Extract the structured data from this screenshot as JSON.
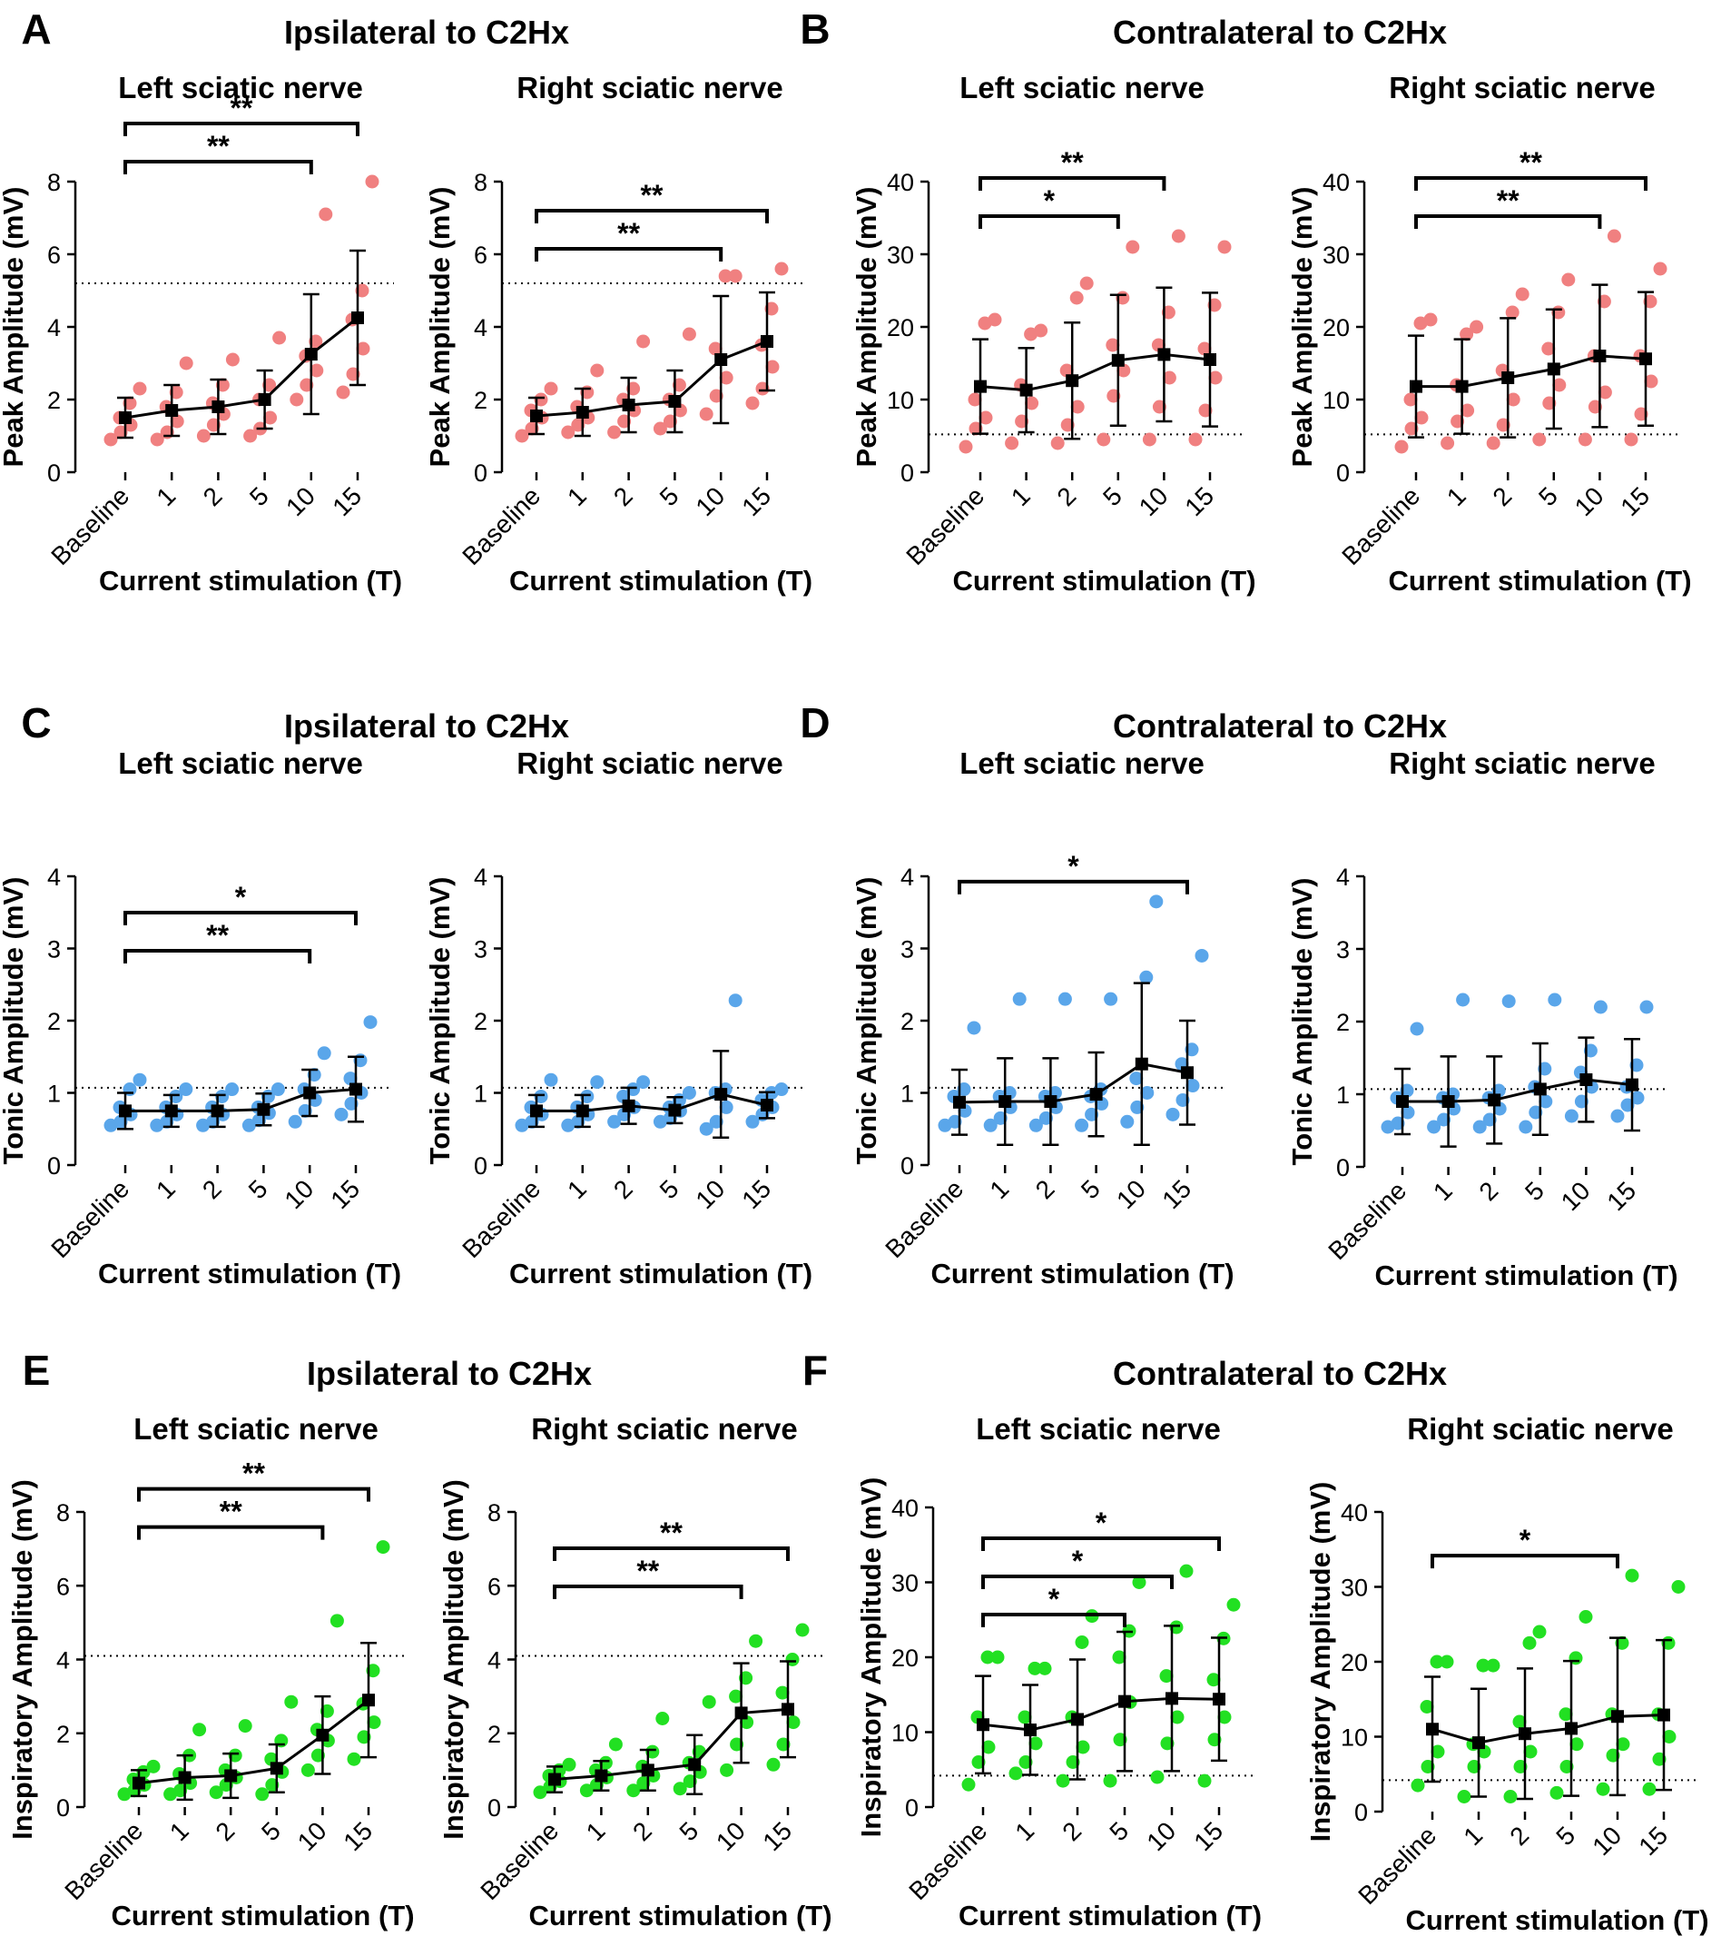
{
  "figure": {
    "panel_letters": [
      "A",
      "B",
      "C",
      "D",
      "E",
      "F"
    ],
    "group_titles": [
      "Ipsilateral to C2Hx",
      "Contralateral to C2Hx",
      "Ipsilateral to C2Hx",
      "Contralateral to C2Hx",
      "Ipsilateral to C2Hx",
      "Contralateral to C2Hx"
    ]
  },
  "colors": {
    "peak_points": "#f08080",
    "tonic_points": "#5aa6ea",
    "inspiratory_points": "#22e022",
    "mean_marker": "#000000"
  },
  "chart_data": [
    {
      "type": "scatter",
      "panel": "A",
      "title": "Left sciatic nerve",
      "xlabel": "Current stimulation (T)",
      "ylabel": "Peak Amplitude (mV)",
      "categories": [
        "Baseline",
        "1",
        "2",
        "5",
        "10",
        "15"
      ],
      "ylim": [
        0,
        8
      ],
      "yticks": [
        0,
        2,
        4,
        6,
        8
      ],
      "reference_line": 5.2,
      "point_color": "peak_points",
      "mean": [
        1.5,
        1.7,
        1.8,
        2.0,
        3.25,
        4.25
      ],
      "sd": [
        0.55,
        0.7,
        0.75,
        0.8,
        1.65,
        1.85
      ],
      "points": [
        [
          0.9,
          1.1,
          1.3,
          1.5,
          1.9,
          2.3
        ],
        [
          0.9,
          1.1,
          1.4,
          1.8,
          2.2,
          3.0
        ],
        [
          1.0,
          1.3,
          1.6,
          1.9,
          2.4,
          3.1
        ],
        [
          1.0,
          1.2,
          1.5,
          2.0,
          2.4,
          3.7
        ],
        [
          2.0,
          2.4,
          2.8,
          3.2,
          3.6,
          7.1
        ],
        [
          2.2,
          2.7,
          3.4,
          4.2,
          5.0,
          8.0
        ]
      ],
      "significance": [
        {
          "from": "Baseline",
          "to": "10",
          "label": "**"
        },
        {
          "from": "Baseline",
          "to": "15",
          "label": "**"
        }
      ]
    },
    {
      "type": "scatter",
      "panel": "A",
      "title": "Right sciatic nerve",
      "xlabel": "Current stimulation (T)",
      "ylabel": "Peak Amplitude (mV)",
      "categories": [
        "Baseline",
        "1",
        "2",
        "5",
        "10",
        "15"
      ],
      "ylim": [
        0,
        8
      ],
      "yticks": [
        0,
        2,
        4,
        6,
        8
      ],
      "reference_line": 5.2,
      "point_color": "peak_points",
      "mean": [
        1.55,
        1.65,
        1.85,
        1.95,
        3.1,
        3.6
      ],
      "sd": [
        0.5,
        0.65,
        0.75,
        0.85,
        1.75,
        1.35
      ],
      "points": [
        [
          1.0,
          1.2,
          1.5,
          1.7,
          2.0,
          2.3
        ],
        [
          1.1,
          1.3,
          1.5,
          1.8,
          2.2,
          2.8
        ],
        [
          1.1,
          1.4,
          1.7,
          2.0,
          2.3,
          3.6
        ],
        [
          1.2,
          1.4,
          1.7,
          2.0,
          2.4,
          3.8
        ],
        [
          1.6,
          2.1,
          2.6,
          3.4,
          5.4,
          5.4
        ],
        [
          1.9,
          2.3,
          2.9,
          3.5,
          4.5,
          5.6
        ]
      ],
      "significance": [
        {
          "from": "Baseline",
          "to": "10",
          "label": "**"
        },
        {
          "from": "Baseline",
          "to": "15",
          "label": "**"
        }
      ]
    },
    {
      "type": "scatter",
      "panel": "B",
      "title": "Left sciatic nerve",
      "xlabel": "Current stimulation (T)",
      "ylabel": "Peak Amplitude (mV)",
      "categories": [
        "Baseline",
        "1",
        "2",
        "5",
        "10",
        "15"
      ],
      "ylim": [
        0,
        40
      ],
      "yticks": [
        0,
        10,
        20,
        30,
        40
      ],
      "reference_line": 5.2,
      "point_color": "peak_points",
      "mean": [
        11.8,
        11.3,
        12.6,
        15.4,
        16.2,
        15.5
      ],
      "sd": [
        6.5,
        5.8,
        8.0,
        9.0,
        9.2,
        9.2
      ],
      "points": [
        [
          3.5,
          6.0,
          7.5,
          10.0,
          20.5,
          21.0
        ],
        [
          4.0,
          7.0,
          9.5,
          12.0,
          19.0,
          19.5
        ],
        [
          4.0,
          6.5,
          9.0,
          14.0,
          24.0,
          26.0
        ],
        [
          4.5,
          10.5,
          14.0,
          17.5,
          24.0,
          31.0
        ],
        [
          4.5,
          9.0,
          13.0,
          17.5,
          22.0,
          32.5
        ],
        [
          4.5,
          8.5,
          13.0,
          17.0,
          23.0,
          31.0
        ]
      ],
      "significance": [
        {
          "from": "Baseline",
          "to": "5",
          "label": "*"
        },
        {
          "from": "Baseline",
          "to": "10",
          "label": "**"
        }
      ]
    },
    {
      "type": "scatter",
      "panel": "B",
      "title": "Right sciatic nerve",
      "xlabel": "Current stimulation (T)",
      "ylabel": "Peak Amplitude (mV)",
      "categories": [
        "Baseline",
        "1",
        "2",
        "5",
        "10",
        "15"
      ],
      "ylim": [
        0,
        40
      ],
      "yticks": [
        0,
        10,
        20,
        30,
        40
      ],
      "reference_line": 5.2,
      "point_color": "peak_points",
      "mean": [
        11.8,
        11.8,
        13.0,
        14.2,
        16.0,
        15.6
      ],
      "sd": [
        7.0,
        6.5,
        8.2,
        8.2,
        9.8,
        9.2
      ],
      "points": [
        [
          3.5,
          6.0,
          7.5,
          10.0,
          20.5,
          21.0
        ],
        [
          4.0,
          7.0,
          8.5,
          12.0,
          19.0,
          20.0
        ],
        [
          4.0,
          6.5,
          10.0,
          14.0,
          22.0,
          24.5
        ],
        [
          4.5,
          9.5,
          12.0,
          17.0,
          22.0,
          26.5
        ],
        [
          4.5,
          9.0,
          11.0,
          16.0,
          23.5,
          32.5
        ],
        [
          4.5,
          8.0,
          12.5,
          16.0,
          23.5,
          28.0
        ]
      ],
      "significance": [
        {
          "from": "Baseline",
          "to": "10",
          "label": "**"
        },
        {
          "from": "Baseline",
          "to": "15",
          "label": "**"
        }
      ]
    },
    {
      "type": "scatter",
      "panel": "C",
      "title": "Left sciatic nerve",
      "xlabel": "Current stimulation (T)",
      "ylabel": "Tonic Amplitude (mV)",
      "categories": [
        "Baseline",
        "1",
        "2",
        "5",
        "10",
        "15"
      ],
      "ylim": [
        0,
        4
      ],
      "yticks": [
        0,
        1,
        2,
        3,
        4
      ],
      "reference_line": 1.07,
      "point_color": "tonic_points",
      "mean": [
        0.75,
        0.75,
        0.75,
        0.77,
        1.0,
        1.05
      ],
      "sd": [
        0.25,
        0.22,
        0.22,
        0.22,
        0.32,
        0.45
      ],
      "points": [
        [
          0.55,
          0.6,
          0.7,
          0.8,
          1.05,
          1.18
        ],
        [
          0.55,
          0.6,
          0.7,
          0.8,
          0.95,
          1.05
        ],
        [
          0.55,
          0.6,
          0.7,
          0.8,
          0.95,
          1.05
        ],
        [
          0.55,
          0.62,
          0.72,
          0.8,
          0.95,
          1.05
        ],
        [
          0.6,
          0.75,
          0.9,
          1.05,
          1.25,
          1.55
        ],
        [
          0.7,
          0.85,
          1.0,
          1.2,
          1.45,
          1.98
        ]
      ],
      "significance": [
        {
          "from": "Baseline",
          "to": "10",
          "label": "**"
        },
        {
          "from": "Baseline",
          "to": "15",
          "label": "*"
        }
      ]
    },
    {
      "type": "scatter",
      "panel": "C",
      "title": "Right sciatic nerve",
      "xlabel": "Current stimulation (T)",
      "ylabel": "Tonic Amplitude (mV)",
      "categories": [
        "Baseline",
        "1",
        "2",
        "5",
        "10",
        "15"
      ],
      "ylim": [
        0,
        4
      ],
      "yticks": [
        0,
        1,
        2,
        3,
        4
      ],
      "reference_line": 1.07,
      "point_color": "tonic_points",
      "mean": [
        0.75,
        0.75,
        0.82,
        0.76,
        0.98,
        0.83
      ],
      "sd": [
        0.22,
        0.22,
        0.25,
        0.18,
        0.6,
        0.18
      ],
      "points": [
        [
          0.55,
          0.6,
          0.7,
          0.8,
          0.95,
          1.18
        ],
        [
          0.55,
          0.6,
          0.7,
          0.8,
          0.95,
          1.15
        ],
        [
          0.6,
          0.7,
          0.8,
          0.95,
          1.05,
          1.15
        ],
        [
          0.6,
          0.65,
          0.75,
          0.8,
          0.9,
          1.0
        ],
        [
          0.5,
          0.6,
          0.8,
          1.0,
          1.05,
          2.28
        ],
        [
          0.6,
          0.7,
          0.8,
          0.9,
          1.0,
          1.05
        ]
      ],
      "significance": []
    },
    {
      "type": "scatter",
      "panel": "D",
      "title": "Left sciatic nerve",
      "xlabel": "Current stimulation (T)",
      "ylabel": "Tonic Amplitude (mV)",
      "categories": [
        "Baseline",
        "1",
        "2",
        "5",
        "10",
        "15"
      ],
      "ylim": [
        0,
        4
      ],
      "yticks": [
        0,
        1,
        2,
        3,
        4
      ],
      "reference_line": 1.07,
      "point_color": "tonic_points",
      "mean": [
        0.87,
        0.88,
        0.88,
        0.98,
        1.4,
        1.28
      ],
      "sd": [
        0.45,
        0.6,
        0.6,
        0.58,
        1.12,
        0.72
      ],
      "points": [
        [
          0.55,
          0.6,
          0.75,
          0.95,
          1.05,
          1.9
        ],
        [
          0.55,
          0.65,
          0.8,
          0.95,
          1.0,
          2.3
        ],
        [
          0.55,
          0.65,
          0.8,
          0.95,
          1.0,
          2.3
        ],
        [
          0.55,
          0.7,
          0.85,
          0.95,
          1.05,
          2.3
        ],
        [
          0.6,
          0.8,
          1.0,
          1.2,
          2.6,
          3.65
        ],
        [
          0.7,
          0.9,
          1.1,
          1.4,
          1.6,
          2.9
        ]
      ],
      "significance": [
        {
          "from": "Baseline",
          "to": "15",
          "label": "*"
        }
      ]
    },
    {
      "type": "scatter",
      "panel": "D",
      "title": "Right sciatic nerve",
      "xlabel": "Current stimulation (T)",
      "ylabel": "Tonic Amplitude (mV)",
      "categories": [
        "Baseline",
        "1",
        "2",
        "5",
        "10",
        "15"
      ],
      "ylim": [
        0,
        4
      ],
      "yticks": [
        0,
        1,
        2,
        3,
        4
      ],
      "reference_line": 1.07,
      "point_color": "tonic_points",
      "mean": [
        0.9,
        0.9,
        0.92,
        1.07,
        1.2,
        1.13
      ],
      "sd": [
        0.45,
        0.62,
        0.6,
        0.63,
        0.58,
        0.63
      ],
      "points": [
        [
          0.55,
          0.6,
          0.75,
          0.95,
          1.05,
          1.9
        ],
        [
          0.55,
          0.65,
          0.8,
          0.95,
          1.0,
          2.3
        ],
        [
          0.55,
          0.65,
          0.8,
          0.95,
          1.05,
          2.28
        ],
        [
          0.55,
          0.75,
          0.9,
          1.1,
          1.35,
          2.3
        ],
        [
          0.7,
          0.9,
          1.1,
          1.3,
          1.6,
          2.2
        ],
        [
          0.7,
          0.85,
          0.95,
          1.1,
          1.4,
          2.2
        ]
      ],
      "significance": []
    },
    {
      "type": "scatter",
      "panel": "E",
      "title": "Left sciatic nerve",
      "xlabel": "Current stimulation (T)",
      "ylabel": "Inspiratory Amplitude (mV)",
      "categories": [
        "Baseline",
        "1",
        "2",
        "5",
        "10",
        "15"
      ],
      "ylim": [
        0,
        8
      ],
      "yticks": [
        0,
        2,
        4,
        6,
        8
      ],
      "reference_line": 4.1,
      "point_color": "inspiratory_points",
      "mean": [
        0.65,
        0.8,
        0.85,
        1.05,
        1.95,
        2.9
      ],
      "sd": [
        0.35,
        0.6,
        0.6,
        0.65,
        1.05,
        1.55
      ],
      "points": [
        [
          0.35,
          0.45,
          0.6,
          0.75,
          0.95,
          1.1
        ],
        [
          0.35,
          0.45,
          0.65,
          0.9,
          1.4,
          2.1
        ],
        [
          0.4,
          0.6,
          0.8,
          1.0,
          1.4,
          2.2
        ],
        [
          0.35,
          0.6,
          0.95,
          1.3,
          1.8,
          2.85
        ],
        [
          1.0,
          1.4,
          1.8,
          2.1,
          2.6,
          5.05
        ],
        [
          1.3,
          1.9,
          2.3,
          2.8,
          3.7,
          7.05
        ]
      ],
      "significance": [
        {
          "from": "Baseline",
          "to": "10",
          "label": "**"
        },
        {
          "from": "Baseline",
          "to": "15",
          "label": "**"
        }
      ]
    },
    {
      "type": "scatter",
      "panel": "E",
      "title": "Right sciatic nerve",
      "xlabel": "Current stimulation (T)",
      "ylabel": "Inspiratory Amplitude (mV)",
      "categories": [
        "Baseline",
        "1",
        "2",
        "5",
        "10",
        "15"
      ],
      "ylim": [
        0,
        8
      ],
      "yticks": [
        0,
        2,
        4,
        6,
        8
      ],
      "reference_line": 4.1,
      "point_color": "inspiratory_points",
      "mean": [
        0.75,
        0.85,
        1.0,
        1.15,
        2.55,
        2.65
      ],
      "sd": [
        0.35,
        0.4,
        0.55,
        0.8,
        1.35,
        1.3
      ],
      "points": [
        [
          0.4,
          0.55,
          0.7,
          0.85,
          1.0,
          1.15
        ],
        [
          0.45,
          0.6,
          0.8,
          1.0,
          1.2,
          1.7
        ],
        [
          0.45,
          0.65,
          0.85,
          1.1,
          1.5,
          2.4
        ],
        [
          0.5,
          0.7,
          0.95,
          1.2,
          1.5,
          2.85
        ],
        [
          1.0,
          1.7,
          2.3,
          3.0,
          3.5,
          4.5
        ],
        [
          1.15,
          1.7,
          2.3,
          3.1,
          4.0,
          4.8
        ]
      ],
      "significance": [
        {
          "from": "Baseline",
          "to": "10",
          "label": "**"
        },
        {
          "from": "Baseline",
          "to": "15",
          "label": "**"
        }
      ]
    },
    {
      "type": "scatter",
      "panel": "F",
      "title": "Left sciatic nerve",
      "xlabel": "Current stimulation (T)",
      "ylabel": "Inspiratory Amplitude (mV)",
      "categories": [
        "Baseline",
        "1",
        "2",
        "5",
        "10",
        "15"
      ],
      "ylim": [
        0,
        40
      ],
      "yticks": [
        0,
        10,
        20,
        30,
        40
      ],
      "reference_line": 4.2,
      "point_color": "inspiratory_points",
      "mean": [
        11.0,
        10.3,
        11.7,
        14.1,
        14.5,
        14.4
      ],
      "sd": [
        6.5,
        6.0,
        8.0,
        9.3,
        9.7,
        8.2
      ],
      "points": [
        [
          3.0,
          6.0,
          8.0,
          12.0,
          20.0,
          20.0
        ],
        [
          4.5,
          6.0,
          8.5,
          12.0,
          18.5,
          18.5
        ],
        [
          3.5,
          6.0,
          8.0,
          12.0,
          22.0,
          25.5
        ],
        [
          3.5,
          9.0,
          14.0,
          20.0,
          23.5,
          30.0
        ],
        [
          4.0,
          8.5,
          12.0,
          17.5,
          24.0,
          31.5
        ],
        [
          3.5,
          9.0,
          12.0,
          17.0,
          22.5,
          27.0
        ]
      ],
      "significance": [
        {
          "from": "Baseline",
          "to": "5",
          "label": "*"
        },
        {
          "from": "Baseline",
          "to": "10",
          "label": "*"
        },
        {
          "from": "Baseline",
          "to": "15",
          "label": "*"
        }
      ]
    },
    {
      "type": "scatter",
      "panel": "F",
      "title": "Right sciatic nerve",
      "xlabel": "Current stimulation (T)",
      "ylabel": "Inspiratory Amplitude (mV)",
      "categories": [
        "Baseline",
        "1",
        "2",
        "5",
        "10",
        "15"
      ],
      "ylim": [
        0,
        40
      ],
      "yticks": [
        0,
        10,
        20,
        30,
        40
      ],
      "reference_line": 4.2,
      "point_color": "inspiratory_points",
      "mean": [
        11.0,
        9.2,
        10.4,
        11.1,
        12.7,
        12.9
      ],
      "sd": [
        7.0,
        7.2,
        8.7,
        9.0,
        10.5,
        10.0
      ],
      "points": [
        [
          3.5,
          6.0,
          8.0,
          14.0,
          20.0,
          20.0
        ],
        [
          2.0,
          6.0,
          8.0,
          9.0,
          19.5,
          19.5
        ],
        [
          2.0,
          6.0,
          8.0,
          12.0,
          22.5,
          24.0
        ],
        [
          2.5,
          6.0,
          9.0,
          13.0,
          20.5,
          26.0
        ],
        [
          3.0,
          7.5,
          9.0,
          13.0,
          22.5,
          31.5
        ],
        [
          3.0,
          7.0,
          10.0,
          13.0,
          22.5,
          30.0
        ]
      ],
      "significance": [
        {
          "from": "Baseline",
          "to": "10",
          "label": "*"
        }
      ]
    }
  ]
}
